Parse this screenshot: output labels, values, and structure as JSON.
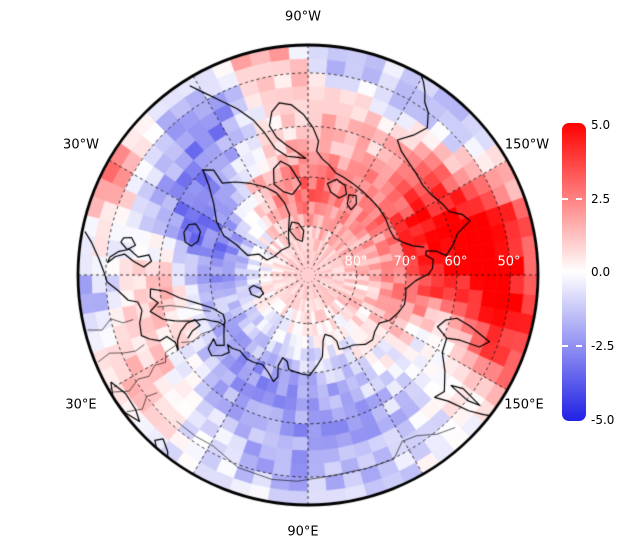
{
  "figure": {
    "meridian_labels": [
      {
        "text": "90°W"
      },
      {
        "text": "150°W"
      },
      {
        "text": "150°E"
      },
      {
        "text": "90°E"
      },
      {
        "text": "30°E"
      },
      {
        "text": "30°W"
      }
    ],
    "latitude_labels": [
      {
        "text": "80°"
      },
      {
        "text": "70°"
      },
      {
        "text": "60°"
      },
      {
        "text": "50°"
      }
    ],
    "colorbar": {
      "tick_labels": [
        "5.0",
        "2.5",
        "0.0",
        "-2.5",
        "-5.0"
      ],
      "top_color": "#ff0000",
      "mid_color": "#ffffff",
      "bottom_color": "#2121e5"
    }
  },
  "chart_data": {
    "type": "heatmap",
    "projection": "north_polar_stereographic",
    "center": "North Pole",
    "edge_latitude_deg": 45,
    "value_range": [
      -5.0,
      5.0
    ],
    "colorbar_ticks": [
      5.0,
      2.5,
      0.0,
      -2.5,
      -5.0
    ],
    "colormap": "blue-white-red diverging",
    "grid_cell_deg": {
      "lon": 5,
      "lat": 2.5
    },
    "noise_amplitude": 0.85,
    "graticule": {
      "latitude_circles_deg": [
        80,
        70,
        60,
        50
      ],
      "meridian_step_deg": 30,
      "style": "dashed"
    },
    "anomaly_blobs": [
      [
        185,
        52,
        4.8,
        14,
        7
      ],
      [
        207,
        63,
        3.0,
        12,
        8
      ],
      [
        172,
        66,
        2.2,
        10,
        6
      ],
      [
        225,
        49,
        -2.6,
        10,
        6
      ],
      [
        283,
        47,
        2.0,
        6,
        4
      ],
      [
        263,
        48,
        -1.6,
        6,
        4
      ],
      [
        302,
        53,
        -2.6,
        8,
        6
      ],
      [
        326,
        63,
        -3.0,
        9,
        6
      ],
      [
        344,
        72,
        -2.4,
        9,
        6
      ],
      [
        297,
        70,
        2.0,
        8,
        6
      ],
      [
        260,
        73,
        1.6,
        8,
        5
      ],
      [
        272,
        56,
        1.4,
        9,
        6
      ],
      [
        333,
        46,
        2.2,
        7,
        4
      ],
      [
        5,
        60,
        1.8,
        9,
        6
      ],
      [
        8,
        47,
        -1.8,
        7,
        5
      ],
      [
        55,
        66,
        -2.0,
        12,
        7
      ],
      [
        105,
        60,
        -1.6,
        14,
        8
      ],
      [
        158,
        60,
        -2.2,
        6,
        6
      ],
      [
        160,
        48,
        2.2,
        7,
        5
      ],
      [
        0,
        90,
        1.0,
        30,
        10
      ],
      [
        90,
        50,
        -1.0,
        15,
        6
      ],
      [
        30,
        53,
        1.2,
        8,
        6
      ]
    ],
    "coastlines": [
      [
        [
          303,
          83
        ],
        [
          317,
          82.5
        ],
        [
          332,
          82
        ],
        [
          340,
          81
        ],
        [
          337,
          79
        ],
        [
          342,
          77
        ],
        [
          337,
          74
        ],
        [
          335,
          71
        ],
        [
          330,
          68.5
        ],
        [
          323,
          66
        ],
        [
          318,
          63
        ],
        [
          315,
          60
        ],
        [
          312,
          61.5
        ],
        [
          313,
          64.5
        ],
        [
          308,
          66
        ],
        [
          302,
          68
        ],
        [
          296,
          70
        ],
        [
          291,
          72
        ],
        [
          288,
          74.5
        ],
        [
          287,
          77
        ],
        [
          291,
          79
        ],
        [
          295,
          80.5
        ],
        [
          299,
          81.8
        ],
        [
          303,
          83
        ]
      ],
      [
        [
          338,
          66.4
        ],
        [
          343,
          66.6
        ],
        [
          346,
          65.6
        ],
        [
          345,
          64.2
        ],
        [
          341,
          63.4
        ],
        [
          337,
          63.8
        ],
        [
          335.5,
          65
        ],
        [
          338,
          66.4
        ]
      ],
      [
        [
          11,
          78.6
        ],
        [
          16,
          79.8
        ],
        [
          22,
          80.1
        ],
        [
          25,
          79
        ],
        [
          19,
          77.7
        ],
        [
          13,
          77.6
        ],
        [
          11,
          78.6
        ]
      ],
      [
        [
          5,
          58.2
        ],
        [
          6.5,
          61
        ],
        [
          10,
          63.5
        ],
        [
          14,
          66.5
        ],
        [
          19,
          69.3
        ],
        [
          25,
          70.9
        ],
        [
          29,
          70.6
        ],
        [
          31,
          70
        ],
        [
          28,
          69.5
        ],
        [
          26,
          68.5
        ],
        [
          23,
          67
        ],
        [
          21.5,
          64.5
        ],
        [
          19,
          61.5
        ],
        [
          17,
          59.5
        ],
        [
          13,
          57.5
        ],
        [
          10.5,
          59.3
        ],
        [
          8,
          58
        ],
        [
          5,
          58.2
        ]
      ],
      [
        [
          12,
          56
        ],
        [
          16,
          55
        ],
        [
          20,
          54.6
        ],
        [
          22,
          55.8
        ],
        [
          24,
          57.5
        ],
        [
          23.5,
          59
        ],
        [
          27,
          60
        ],
        [
          30,
          59.7
        ],
        [
          26.5,
          60.6
        ],
        [
          24,
          61.8
        ],
        [
          21.8,
          63.5
        ],
        [
          21.5,
          65.3
        ],
        [
          25,
          65.8
        ],
        [
          25.8,
          64
        ],
        [
          27.8,
          62.5
        ]
      ],
      [
        [
          31,
          70
        ],
        [
          36,
          68.8
        ],
        [
          40,
          67.7
        ],
        [
          37.5,
          66.5
        ],
        [
          34,
          66.8
        ],
        [
          36.5,
          64.8
        ],
        [
          40,
          64.5
        ],
        [
          43,
          66
        ],
        [
          44.5,
          67.5
        ],
        [
          41,
          68.3
        ],
        [
          44,
          68.5
        ],
        [
          48,
          69.2
        ],
        [
          54,
          68.8
        ],
        [
          58,
          69
        ]
      ],
      [
        [
          58,
          69
        ],
        [
          63,
          69.5
        ],
        [
          68,
          68.5
        ],
        [
          72,
          67.2
        ],
        [
          73.5,
          68.3
        ],
        [
          71.8,
          70.5
        ],
        [
          73,
          72.3
        ],
        [
          76.5,
          71.8
        ],
        [
          78.5,
          70.3
        ],
        [
          83,
          70
        ],
        [
          87,
          69.7
        ],
        [
          91,
          69.5
        ],
        [
          96,
          71.5
        ],
        [
          100,
          73
        ],
        [
          103,
          76.2
        ],
        [
          106,
          77.3
        ],
        [
          111,
          76.5
        ],
        [
          113.5,
          75.2
        ],
        [
          112.8,
          73.5
        ],
        [
          117,
          73.2
        ],
        [
          123,
          72.9
        ],
        [
          129.5,
          71.6
        ],
        [
          135,
          71.3
        ],
        [
          139.8,
          72.1
        ],
        [
          146,
          72.4
        ],
        [
          151,
          70.9
        ],
        [
          157.5,
          70
        ],
        [
          163,
          69.4
        ],
        [
          168,
          69.6
        ],
        [
          172,
          69.8
        ],
        [
          177,
          68
        ],
        [
          180.5,
          65.5
        ],
        [
          183,
          64.7
        ],
        [
          187,
          64.4
        ],
        [
          189.5,
          65.7
        ],
        [
          191.5,
          65.5
        ]
      ],
      [
        [
          193.5,
          65.7
        ],
        [
          195.5,
          67.8
        ],
        [
          199,
          69.5
        ],
        [
          203,
          70.8
        ],
        [
          209,
          70.9
        ],
        [
          216,
          70.4
        ],
        [
          223,
          70.1
        ],
        [
          230,
          69.9
        ],
        [
          237,
          69.6
        ],
        [
          244,
          69.2
        ],
        [
          250,
          68.8
        ],
        [
          255,
          68.4
        ]
      ],
      [
        [
          191.5,
          65.5
        ],
        [
          190.5,
          63.5
        ],
        [
          188,
          61.8
        ],
        [
          192,
          60
        ],
        [
          195.5,
          58.8
        ],
        [
          198.5,
          55.8
        ],
        [
          201.5,
          56.8
        ],
        [
          204,
          58.8
        ],
        [
          208,
          59.4
        ],
        [
          213,
          60.3
        ],
        [
          218,
          60.6
        ],
        [
          223,
          60.1
        ],
        [
          228,
          59.6
        ],
        [
          233,
          58.8
        ],
        [
          236.5,
          57.5
        ]
      ],
      [
        [
          236.5,
          57.5
        ],
        [
          233,
          55
        ],
        [
          231,
          52.3
        ],
        [
          233.5,
          50
        ],
        [
          236,
          48.8
        ],
        [
          237.5,
          47.2
        ],
        [
          239,
          46
        ],
        [
          240.5,
          45
        ]
      ],
      [
        [
          255,
          68.4
        ],
        [
          259,
          67.2
        ],
        [
          263,
          66.2
        ],
        [
          266,
          64.8
        ],
        [
          265.5,
          62.8
        ],
        [
          268,
          60.3
        ],
        [
          271.5,
          57.8
        ],
        [
          275.5,
          55.8
        ],
        [
          279.5,
          55.1
        ],
        [
          282.5,
          56.5
        ],
        [
          284.5,
          59
        ],
        [
          282.8,
          61.5
        ],
        [
          279.5,
          63.3
        ],
        [
          275.5,
          64.8
        ],
        [
          271,
          66.3
        ],
        [
          275,
          66
        ],
        [
          280,
          65.5
        ],
        [
          284.5,
          63.5
        ],
        [
          287,
          60
        ],
        [
          289.5,
          57
        ],
        [
          293,
          54
        ],
        [
          297,
          51
        ],
        [
          300,
          48.3
        ],
        [
          302,
          46.2
        ]
      ],
      [
        [
          281,
          73.2
        ],
        [
          286.5,
          72.2
        ],
        [
          290.5,
          70.2
        ],
        [
          288,
          67.3
        ],
        [
          283.5,
          66.2
        ],
        [
          279.5,
          67.5
        ],
        [
          277,
          69.5
        ],
        [
          274.5,
          71.3
        ],
        [
          281,
          73.2
        ]
      ],
      [
        [
          248,
          73
        ],
        [
          254.5,
          72.4
        ],
        [
          258,
          70.9
        ],
        [
          253.5,
          69.6
        ],
        [
          247.5,
          70.2
        ],
        [
          244.5,
          71.7
        ],
        [
          248,
          73
        ]
      ],
      [
        [
          279.5,
          83
        ],
        [
          288,
          82.2
        ],
        [
          292.5,
          80
        ],
        [
          287,
          78.6
        ],
        [
          280.5,
          79.2
        ],
        [
          275.5,
          80.8
        ],
        [
          279.5,
          83
        ]
      ],
      [
        [
          236.5,
          74
        ],
        [
          241,
          73.4
        ],
        [
          243,
          71.6
        ],
        [
          238.8,
          71
        ],
        [
          235.8,
          72.4
        ],
        [
          236.5,
          74
        ]
      ],
      [
        [
          162.5,
          56
        ],
        [
          163.8,
          58.8
        ],
        [
          161.8,
          60.8
        ],
        [
          158.2,
          61.8
        ],
        [
          155.5,
          59.3
        ],
        [
          156.8,
          56.8
        ],
        [
          157.2,
          53
        ],
        [
          159.8,
          51.6
        ],
        [
          162.5,
          56
        ]
      ],
      [
        [
          155.5,
          59.3
        ],
        [
          150,
          58.8
        ],
        [
          145,
          56.5
        ],
        [
          139.5,
          54.2
        ],
        [
          136,
          54.8
        ],
        [
          138,
          52.5
        ],
        [
          139.8,
          48.5
        ],
        [
          141.5,
          46
        ],
        [
          142.3,
          45
        ]
      ],
      [
        [
          142.3,
          54
        ],
        [
          143.8,
          51.8
        ],
        [
          142.8,
          47.5
        ],
        [
          141.8,
          49.8
        ],
        [
          142.3,
          54
        ]
      ],
      [
        [
          349,
          45.5
        ],
        [
          351.5,
          47
        ],
        [
          355.5,
          48.6
        ],
        [
          359,
          49.6
        ],
        [
          2,
          50.2
        ],
        [
          4.5,
          52
        ],
        [
          8,
          53.8
        ],
        [
          9,
          55.5
        ],
        [
          12,
          56
        ]
      ],
      [
        [
          356.5,
          50.2
        ],
        [
          354.5,
          51.6
        ],
        [
          353.5,
          53.2
        ],
        [
          355.5,
          55
        ],
        [
          357.2,
          57
        ],
        [
          355,
          58.4
        ],
        [
          352.8,
          57.8
        ],
        [
          354,
          55.8
        ],
        [
          351.8,
          54
        ],
        [
          353,
          52
        ],
        [
          354.8,
          50.6
        ],
        [
          356.5,
          50.2
        ]
      ],
      [
        [
          350,
          52.2
        ],
        [
          352,
          53.6
        ],
        [
          350.2,
          55
        ],
        [
          348,
          54
        ],
        [
          348.6,
          52.6
        ],
        [
          350,
          52.2
        ]
      ],
      [
        [
          28.5,
          46
        ],
        [
          33,
          47.2
        ],
        [
          38,
          47
        ],
        [
          41,
          46.2
        ],
        [
          37,
          45.2
        ],
        [
          32,
          45
        ],
        [
          28.5,
          46
        ]
      ],
      [
        [
          48.5,
          47
        ],
        [
          51.5,
          45.8
        ],
        [
          53,
          44.5
        ],
        [
          49.8,
          44.5
        ],
        [
          47.2,
          45.8
        ],
        [
          48.5,
          47
        ]
      ]
    ],
    "borders": [
      [
        [
          31,
          45.5
        ],
        [
          33,
          48
        ],
        [
          31.5,
          50.5
        ],
        [
          32.5,
          52.5
        ],
        [
          30.5,
          54.5
        ],
        [
          31.5,
          56.5
        ],
        [
          28.5,
          57.5
        ],
        [
          28,
          59.8
        ]
      ],
      [
        [
          28,
          61
        ],
        [
          30,
          63
        ],
        [
          29,
          65.3
        ],
        [
          30,
          67.5
        ],
        [
          28.5,
          69.5
        ]
      ],
      [
        [
          12,
          59
        ],
        [
          12.5,
          61.5
        ],
        [
          14.5,
          64
        ],
        [
          17.5,
          66.5
        ],
        [
          20.5,
          68.8
        ]
      ],
      [
        [
          48,
          51
        ],
        [
          55,
          51
        ],
        [
          61,
          51.2
        ],
        [
          70,
          49.5
        ],
        [
          80,
          49
        ],
        [
          87,
          49.2
        ]
      ],
      [
        [
          87,
          49.2
        ],
        [
          97,
          50
        ],
        [
          107,
          50
        ],
        [
          115,
          49.8
        ],
        [
          119.5,
          52
        ],
        [
          124,
          51.5
        ],
        [
          129,
          49.5
        ],
        [
          134,
          48.2
        ]
      ],
      [
        [
          14,
          45.5
        ],
        [
          15,
          48
        ],
        [
          12.5,
          50
        ],
        [
          14.5,
          52
        ],
        [
          14.3,
          54
        ]
      ],
      [
        [
          22.5,
          45.5
        ],
        [
          21.5,
          48
        ],
        [
          23,
          50.5
        ],
        [
          23.8,
          52.5
        ],
        [
          23,
          54.5
        ]
      ],
      [
        [
          37,
          45.5
        ],
        [
          39,
          48
        ],
        [
          37,
          50
        ],
        [
          38,
          52
        ]
      ]
    ]
  }
}
